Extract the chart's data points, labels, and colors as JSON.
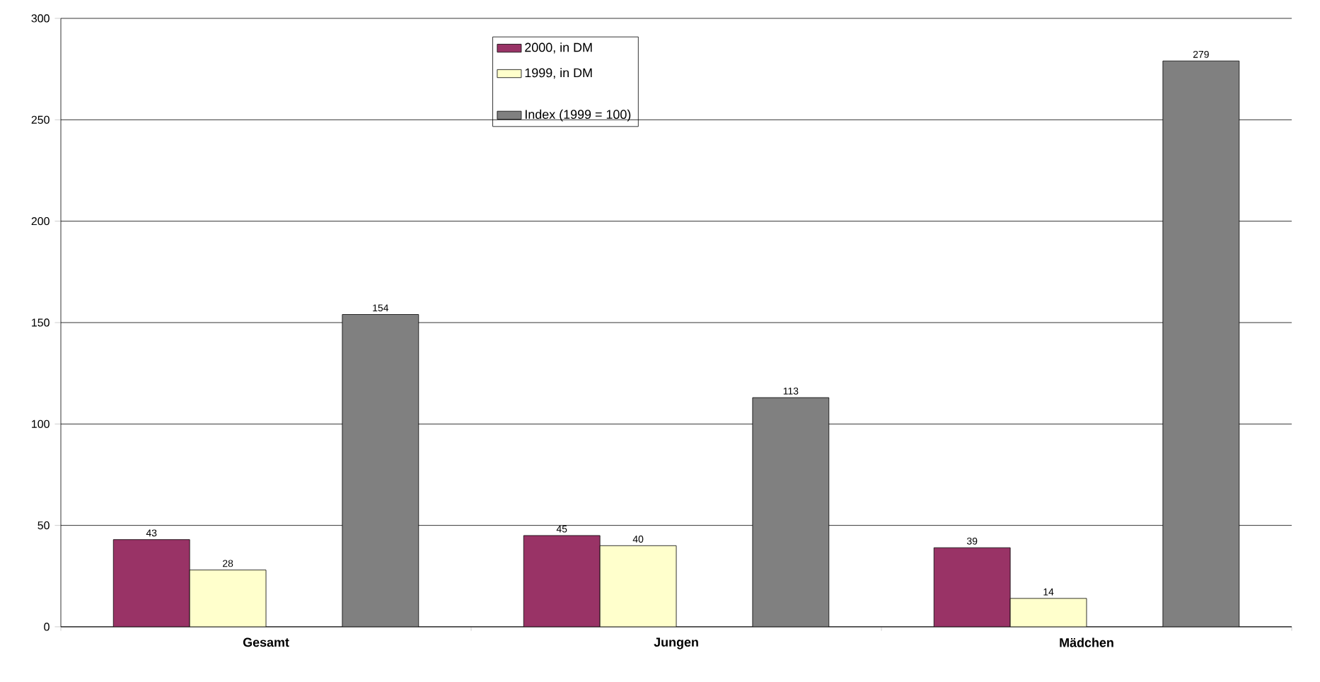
{
  "chart_data": {
    "type": "bar",
    "categories": [
      "Gesamt",
      "Jungen",
      "Mädchen"
    ],
    "series": [
      {
        "name": "2000, in DM",
        "color": "#993366",
        "values": [
          43,
          45,
          39
        ]
      },
      {
        "name": "1999, in DM",
        "color": "#ffffcc",
        "values": [
          28,
          40,
          14
        ]
      },
      {
        "values": [
          null,
          null,
          null
        ]
      },
      {
        "name": "Index (1999 = 100)",
        "color": "#808080",
        "values": [
          154,
          113,
          279
        ]
      }
    ],
    "ylim": [
      0,
      300
    ],
    "yticks": [
      0,
      50,
      100,
      150,
      200,
      250,
      300
    ],
    "grid": "y",
    "legend": "top",
    "data_labels": true
  }
}
